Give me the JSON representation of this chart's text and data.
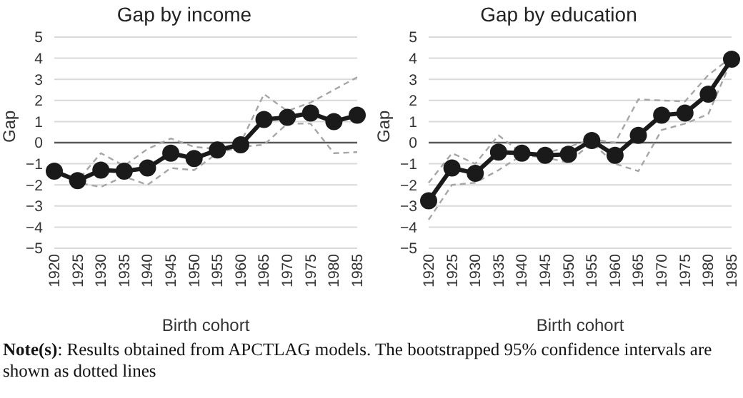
{
  "chart_data": [
    {
      "type": "line",
      "title": "Gap by income",
      "xlabel": "Birth cohort",
      "ylabel": "Gap",
      "categories": [
        "1920",
        "1925",
        "1930",
        "1935",
        "1940",
        "1945",
        "1950",
        "1955",
        "1960",
        "1965",
        "1970",
        "1975",
        "1980",
        "1985"
      ],
      "series": [
        {
          "color": "#a6a6a6",
          "line_style": "dashed",
          "marker": "none",
          "values": [
            -1.3,
            -1.8,
            -0.5,
            -1.1,
            -0.3,
            0.2,
            -0.2,
            -0.3,
            0,
            2.3,
            1.5,
            1.9,
            2.5,
            3.1
          ]
        },
        {
          "color": "#a6a6a6",
          "line_style": "dashed",
          "marker": "none",
          "values": [
            -1.4,
            -1.9,
            -2.1,
            -1.6,
            -2.0,
            -1.2,
            -1.3,
            -0.5,
            -0.2,
            -0.1,
            0.9,
            0.9,
            -0.5,
            -0.45
          ]
        },
        {
          "color": "#1a1a1a",
          "line_style": "solid",
          "marker": "circle",
          "values": [
            -1.35,
            -1.8,
            -1.3,
            -1.35,
            -1.2,
            -0.5,
            -0.75,
            -0.35,
            -0.1,
            1.1,
            1.2,
            1.4,
            1.0,
            1.3
          ]
        }
      ],
      "ylim": [
        -5,
        5
      ],
      "yticks": [
        {
          "value": -5,
          "label": "−5"
        },
        {
          "value": -4,
          "label": "−4"
        },
        {
          "value": -3,
          "label": "−3"
        },
        {
          "value": -2,
          "label": "−2"
        },
        {
          "value": -1,
          "label": "−1"
        },
        0,
        1,
        2,
        3,
        4,
        5
      ],
      "grid": "y",
      "ref_lines": [
        {
          "axis": "y",
          "value": 0,
          "color": "#595959"
        }
      ],
      "annotations": [
        "Note(s): Results obtained from APCTLAG models. The bootstrapped 95% confidence intervals are shown as dotted lines"
      ]
    },
    {
      "type": "line",
      "title": "Gap by education",
      "xlabel": "Birth cohort",
      "ylabel": "Gap",
      "categories": [
        "1920",
        "1925",
        "1930",
        "1935",
        "1940",
        "1945",
        "1950",
        "1955",
        "1960",
        "1965",
        "1970",
        "1975",
        "1980",
        "1985"
      ],
      "series": [
        {
          "color": "#a6a6a6",
          "line_style": "dashed",
          "marker": "none",
          "values": [
            -1.9,
            -0.5,
            -1.0,
            0.35,
            -0.5,
            -0.5,
            -0.2,
            0.15,
            0,
            2.05,
            2.0,
            1.95,
            3.2,
            4.05
          ]
        },
        {
          "color": "#a6a6a6",
          "line_style": "dashed",
          "marker": "none",
          "values": [
            -3.65,
            -2.0,
            -1.9,
            -1.3,
            -0.6,
            -0.7,
            -0.95,
            0.0,
            -1.0,
            -1.35,
            0.6,
            0.9,
            1.35,
            3.9
          ]
        },
        {
          "color": "#1a1a1a",
          "line_style": "solid",
          "marker": "circle",
          "values": [
            -2.75,
            -1.2,
            -1.45,
            -0.45,
            -0.5,
            -0.6,
            -0.55,
            0.1,
            -0.6,
            0.35,
            1.3,
            1.4,
            2.3,
            3.95
          ]
        }
      ],
      "ylim": [
        -5,
        5
      ],
      "yticks": [
        {
          "value": -5,
          "label": "−5"
        },
        {
          "value": -4,
          "label": "−4"
        },
        {
          "value": -3,
          "label": "−3"
        },
        {
          "value": -2,
          "label": "−2"
        },
        {
          "value": -1,
          "label": "−1"
        },
        0,
        1,
        2,
        3,
        4,
        5
      ],
      "grid": "y",
      "ref_lines": [
        {
          "axis": "y",
          "value": 0,
          "color": "#595959"
        }
      ]
    }
  ]
}
